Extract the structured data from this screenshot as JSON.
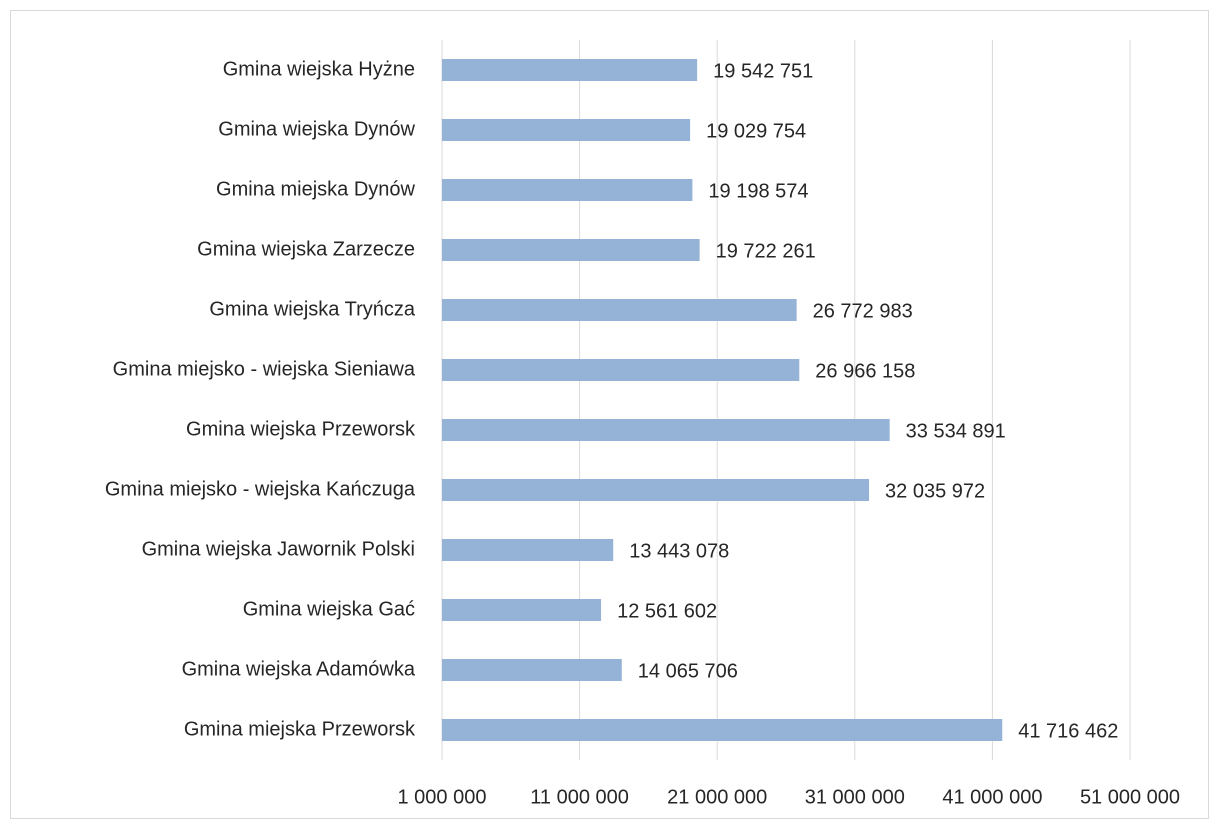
{
  "chart_data": {
    "type": "bar",
    "orientation": "horizontal",
    "categories": [
      "Gmina wiejska Hyżne",
      "Gmina wiejska Dynów",
      "Gmina miejska Dynów",
      "Gmina wiejska Zarzecze",
      "Gmina wiejska Tryńcza",
      "Gmina miejsko - wiejska Sieniawa",
      "Gmina wiejska Przeworsk",
      "Gmina miejsko - wiejska Kańczuga",
      "Gmina wiejska Jawornik Polski",
      "Gmina wiejska Gać",
      "Gmina wiejska Adamówka",
      "Gmina miejska Przeworsk"
    ],
    "values": [
      19542751,
      19029754,
      19198574,
      19722261,
      26772983,
      26966158,
      33534891,
      32035972,
      13443078,
      12561602,
      14065706,
      41716462
    ],
    "value_labels": [
      "19 542 751",
      "19 029 754",
      "19 198 574",
      "19 722 261",
      "26 772 983",
      "26 966 158",
      "33 534 891",
      "32 035 972",
      "13 443 078",
      "12 561 602",
      "14 065 706",
      "41 716 462"
    ],
    "color": "#95b3d7",
    "xlim": [
      1000000,
      51000000
    ],
    "xticks": [
      {
        "value": 1000000,
        "label": "1 000 000"
      },
      {
        "value": 11000000,
        "label": "11 000 000"
      },
      {
        "value": 21000000,
        "label": "21 000 000"
      },
      {
        "value": 31000000,
        "label": "31 000 000"
      },
      {
        "value": 41000000,
        "label": "41 000 000"
      },
      {
        "value": 51000000,
        "label": "51 000 000"
      }
    ],
    "grid": true
  }
}
